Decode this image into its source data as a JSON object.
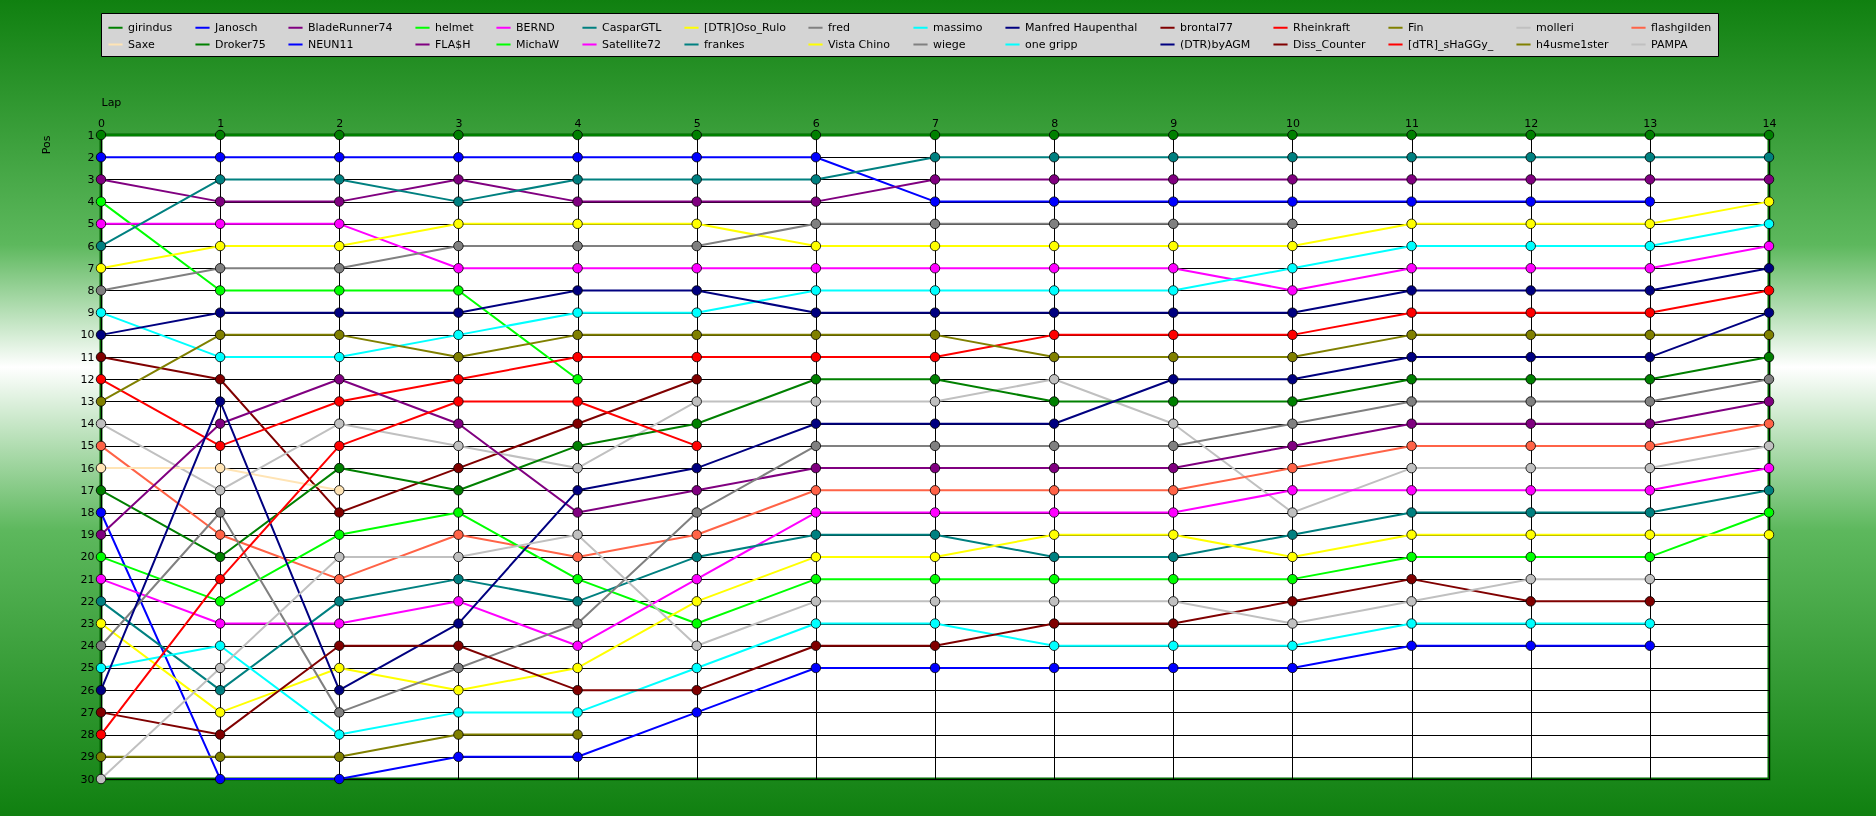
{
  "chart_data": {
    "type": "line",
    "xlabel": "Lap",
    "ylabel": "Pos",
    "x": [
      0,
      1,
      2,
      3,
      4,
      5,
      6,
      7,
      8,
      9,
      10,
      11,
      12,
      13,
      14
    ],
    "xlim": [
      0,
      14
    ],
    "xticks": [
      0,
      1,
      2,
      3,
      4,
      5,
      6,
      7,
      8,
      9,
      10,
      11,
      12,
      13,
      14
    ],
    "ylim": [
      30,
      1
    ],
    "yticks": [
      1,
      2,
      3,
      4,
      5,
      6,
      7,
      8,
      9,
      10,
      11,
      12,
      13,
      14,
      15,
      16,
      17,
      18,
      19,
      20,
      21,
      22,
      23,
      24,
      25,
      26,
      27,
      28,
      29,
      30
    ],
    "grid": true,
    "legend": "top",
    "marker": "circle",
    "series": [
      {
        "name": "girindus",
        "color": "#008000",
        "values": [
          1,
          1,
          1,
          1,
          1,
          1,
          1,
          1,
          1,
          1,
          1,
          1,
          1,
          1,
          1
        ]
      },
      {
        "name": "Janosch",
        "color": "#0000ff",
        "values": [
          2,
          2,
          2,
          2,
          2,
          2,
          2,
          4,
          4,
          4,
          4,
          4,
          4,
          4,
          null
        ]
      },
      {
        "name": "BladeRunner74",
        "color": "#800080",
        "values": [
          3,
          4,
          4,
          3,
          4,
          4,
          4,
          3,
          3,
          3,
          3,
          3,
          3,
          3,
          3
        ]
      },
      {
        "name": "helmet",
        "color": "#00ff00",
        "values": [
          4,
          8,
          8,
          8,
          12,
          null,
          null,
          null,
          null,
          null,
          null,
          null,
          null,
          null,
          null
        ]
      },
      {
        "name": "BERND",
        "color": "#ff00ff",
        "values": [
          5,
          5,
          5,
          7,
          7,
          7,
          7,
          7,
          7,
          7,
          8,
          7,
          7,
          7,
          6
        ]
      },
      {
        "name": "CasparGTL",
        "color": "#008080",
        "values": [
          6,
          3,
          3,
          4,
          3,
          3,
          3,
          2,
          2,
          2,
          2,
          2,
          2,
          2,
          2
        ]
      },
      {
        "name": "[DTR]Oso_Rulo",
        "color": "#ffff00",
        "values": [
          7,
          6,
          6,
          5,
          5,
          5,
          6,
          6,
          6,
          6,
          6,
          5,
          5,
          5,
          4
        ]
      },
      {
        "name": "fred",
        "color": "#808080",
        "values": [
          8,
          7,
          7,
          6,
          6,
          6,
          5,
          5,
          5,
          5,
          5,
          null,
          null,
          null,
          null
        ]
      },
      {
        "name": "massimo",
        "color": "#00ffff",
        "values": [
          9,
          11,
          11,
          10,
          9,
          9,
          8,
          8,
          8,
          8,
          7,
          6,
          6,
          6,
          5
        ]
      },
      {
        "name": "Manfred Haupenthal",
        "color": "#000080",
        "values": [
          10,
          9,
          9,
          9,
          8,
          8,
          9,
          9,
          9,
          9,
          9,
          8,
          8,
          8,
          7
        ]
      },
      {
        "name": "brontal77",
        "color": "#800000",
        "values": [
          11,
          12,
          18,
          16,
          14,
          12,
          null,
          null,
          null,
          null,
          null,
          null,
          null,
          null,
          null
        ]
      },
      {
        "name": "Rheinkraft",
        "color": "#ff0000",
        "values": [
          12,
          15,
          13,
          12,
          11,
          11,
          11,
          11,
          10,
          10,
          10,
          9,
          9,
          9,
          8
        ]
      },
      {
        "name": "Fin",
        "color": "#808000",
        "values": [
          13,
          10,
          10,
          11,
          10,
          10,
          10,
          10,
          11,
          11,
          11,
          10,
          10,
          10,
          10
        ]
      },
      {
        "name": "molleri",
        "color": "#c0c0c0",
        "values": [
          14,
          17,
          14,
          15,
          16,
          13,
          13,
          13,
          12,
          14,
          18,
          16,
          16,
          16,
          15
        ]
      },
      {
        "name": "flashgilden",
        "color": "#ff6347",
        "values": [
          15,
          19,
          21,
          19,
          20,
          19,
          17,
          17,
          17,
          17,
          16,
          15,
          15,
          15,
          14
        ]
      },
      {
        "name": "Saxe",
        "color": "#ffe4b5",
        "values": [
          16,
          16,
          17,
          null,
          null,
          null,
          null,
          null,
          null,
          null,
          null,
          null,
          null,
          null,
          null
        ]
      },
      {
        "name": "Droker75",
        "color": "#008000",
        "values": [
          17,
          20,
          16,
          17,
          15,
          14,
          12,
          12,
          13,
          13,
          13,
          12,
          12,
          12,
          11
        ]
      },
      {
        "name": "NEUN11",
        "color": "#0000ff",
        "values": [
          18,
          30,
          30,
          29,
          29,
          27,
          25,
          25,
          25,
          25,
          25,
          24,
          24,
          24,
          null
        ]
      },
      {
        "name": "FLA$H",
        "color": "#800080",
        "values": [
          19,
          14,
          12,
          14,
          18,
          17,
          16,
          16,
          16,
          16,
          15,
          14,
          14,
          14,
          13
        ]
      },
      {
        "name": "MichaW",
        "color": "#00ff00",
        "values": [
          20,
          22,
          19,
          18,
          21,
          23,
          21,
          21,
          21,
          21,
          21,
          20,
          20,
          20,
          18
        ]
      },
      {
        "name": "Satellite72",
        "color": "#ff00ff",
        "values": [
          21,
          23,
          23,
          22,
          24,
          21,
          18,
          18,
          18,
          18,
          17,
          17,
          17,
          17,
          16
        ]
      },
      {
        "name": "frankes",
        "color": "#008080",
        "values": [
          22,
          26,
          22,
          21,
          22,
          20,
          19,
          19,
          20,
          20,
          19,
          18,
          18,
          18,
          17
        ]
      },
      {
        "name": "Vista Chino",
        "color": "#ffff00",
        "values": [
          23,
          27,
          25,
          26,
          25,
          22,
          20,
          20,
          19,
          19,
          20,
          19,
          19,
          19,
          19
        ]
      },
      {
        "name": "wiege",
        "color": "#808080",
        "values": [
          24,
          18,
          27,
          25,
          23,
          18,
          15,
          15,
          15,
          15,
          14,
          13,
          13,
          13,
          12
        ]
      },
      {
        "name": "one gripp",
        "color": "#00ffff",
        "values": [
          25,
          24,
          28,
          27,
          27,
          25,
          23,
          23,
          24,
          24,
          24,
          23,
          23,
          23,
          null
        ]
      },
      {
        "name": "(DTR)byAGM",
        "color": "#000080",
        "values": [
          26,
          13,
          26,
          23,
          17,
          16,
          14,
          14,
          14,
          12,
          12,
          11,
          11,
          11,
          9
        ]
      },
      {
        "name": "Diss_Counter",
        "color": "#800000",
        "values": [
          27,
          28,
          24,
          24,
          26,
          26,
          24,
          24,
          23,
          23,
          22,
          21,
          22,
          22,
          null
        ]
      },
      {
        "name": "[dTR]_sHaGGy_",
        "color": "#ff0000",
        "values": [
          28,
          21,
          15,
          13,
          13,
          15,
          null,
          null,
          null,
          null,
          null,
          null,
          null,
          null,
          null
        ]
      },
      {
        "name": "h4usme1ster",
        "color": "#808000",
        "values": [
          29,
          29,
          29,
          28,
          28,
          null,
          null,
          null,
          null,
          null,
          null,
          null,
          null,
          null,
          null
        ]
      },
      {
        "name": "PAMPA",
        "color": "#c0c0c0",
        "values": [
          30,
          25,
          20,
          20,
          19,
          24,
          22,
          22,
          22,
          22,
          23,
          22,
          21,
          21,
          null
        ]
      }
    ]
  }
}
